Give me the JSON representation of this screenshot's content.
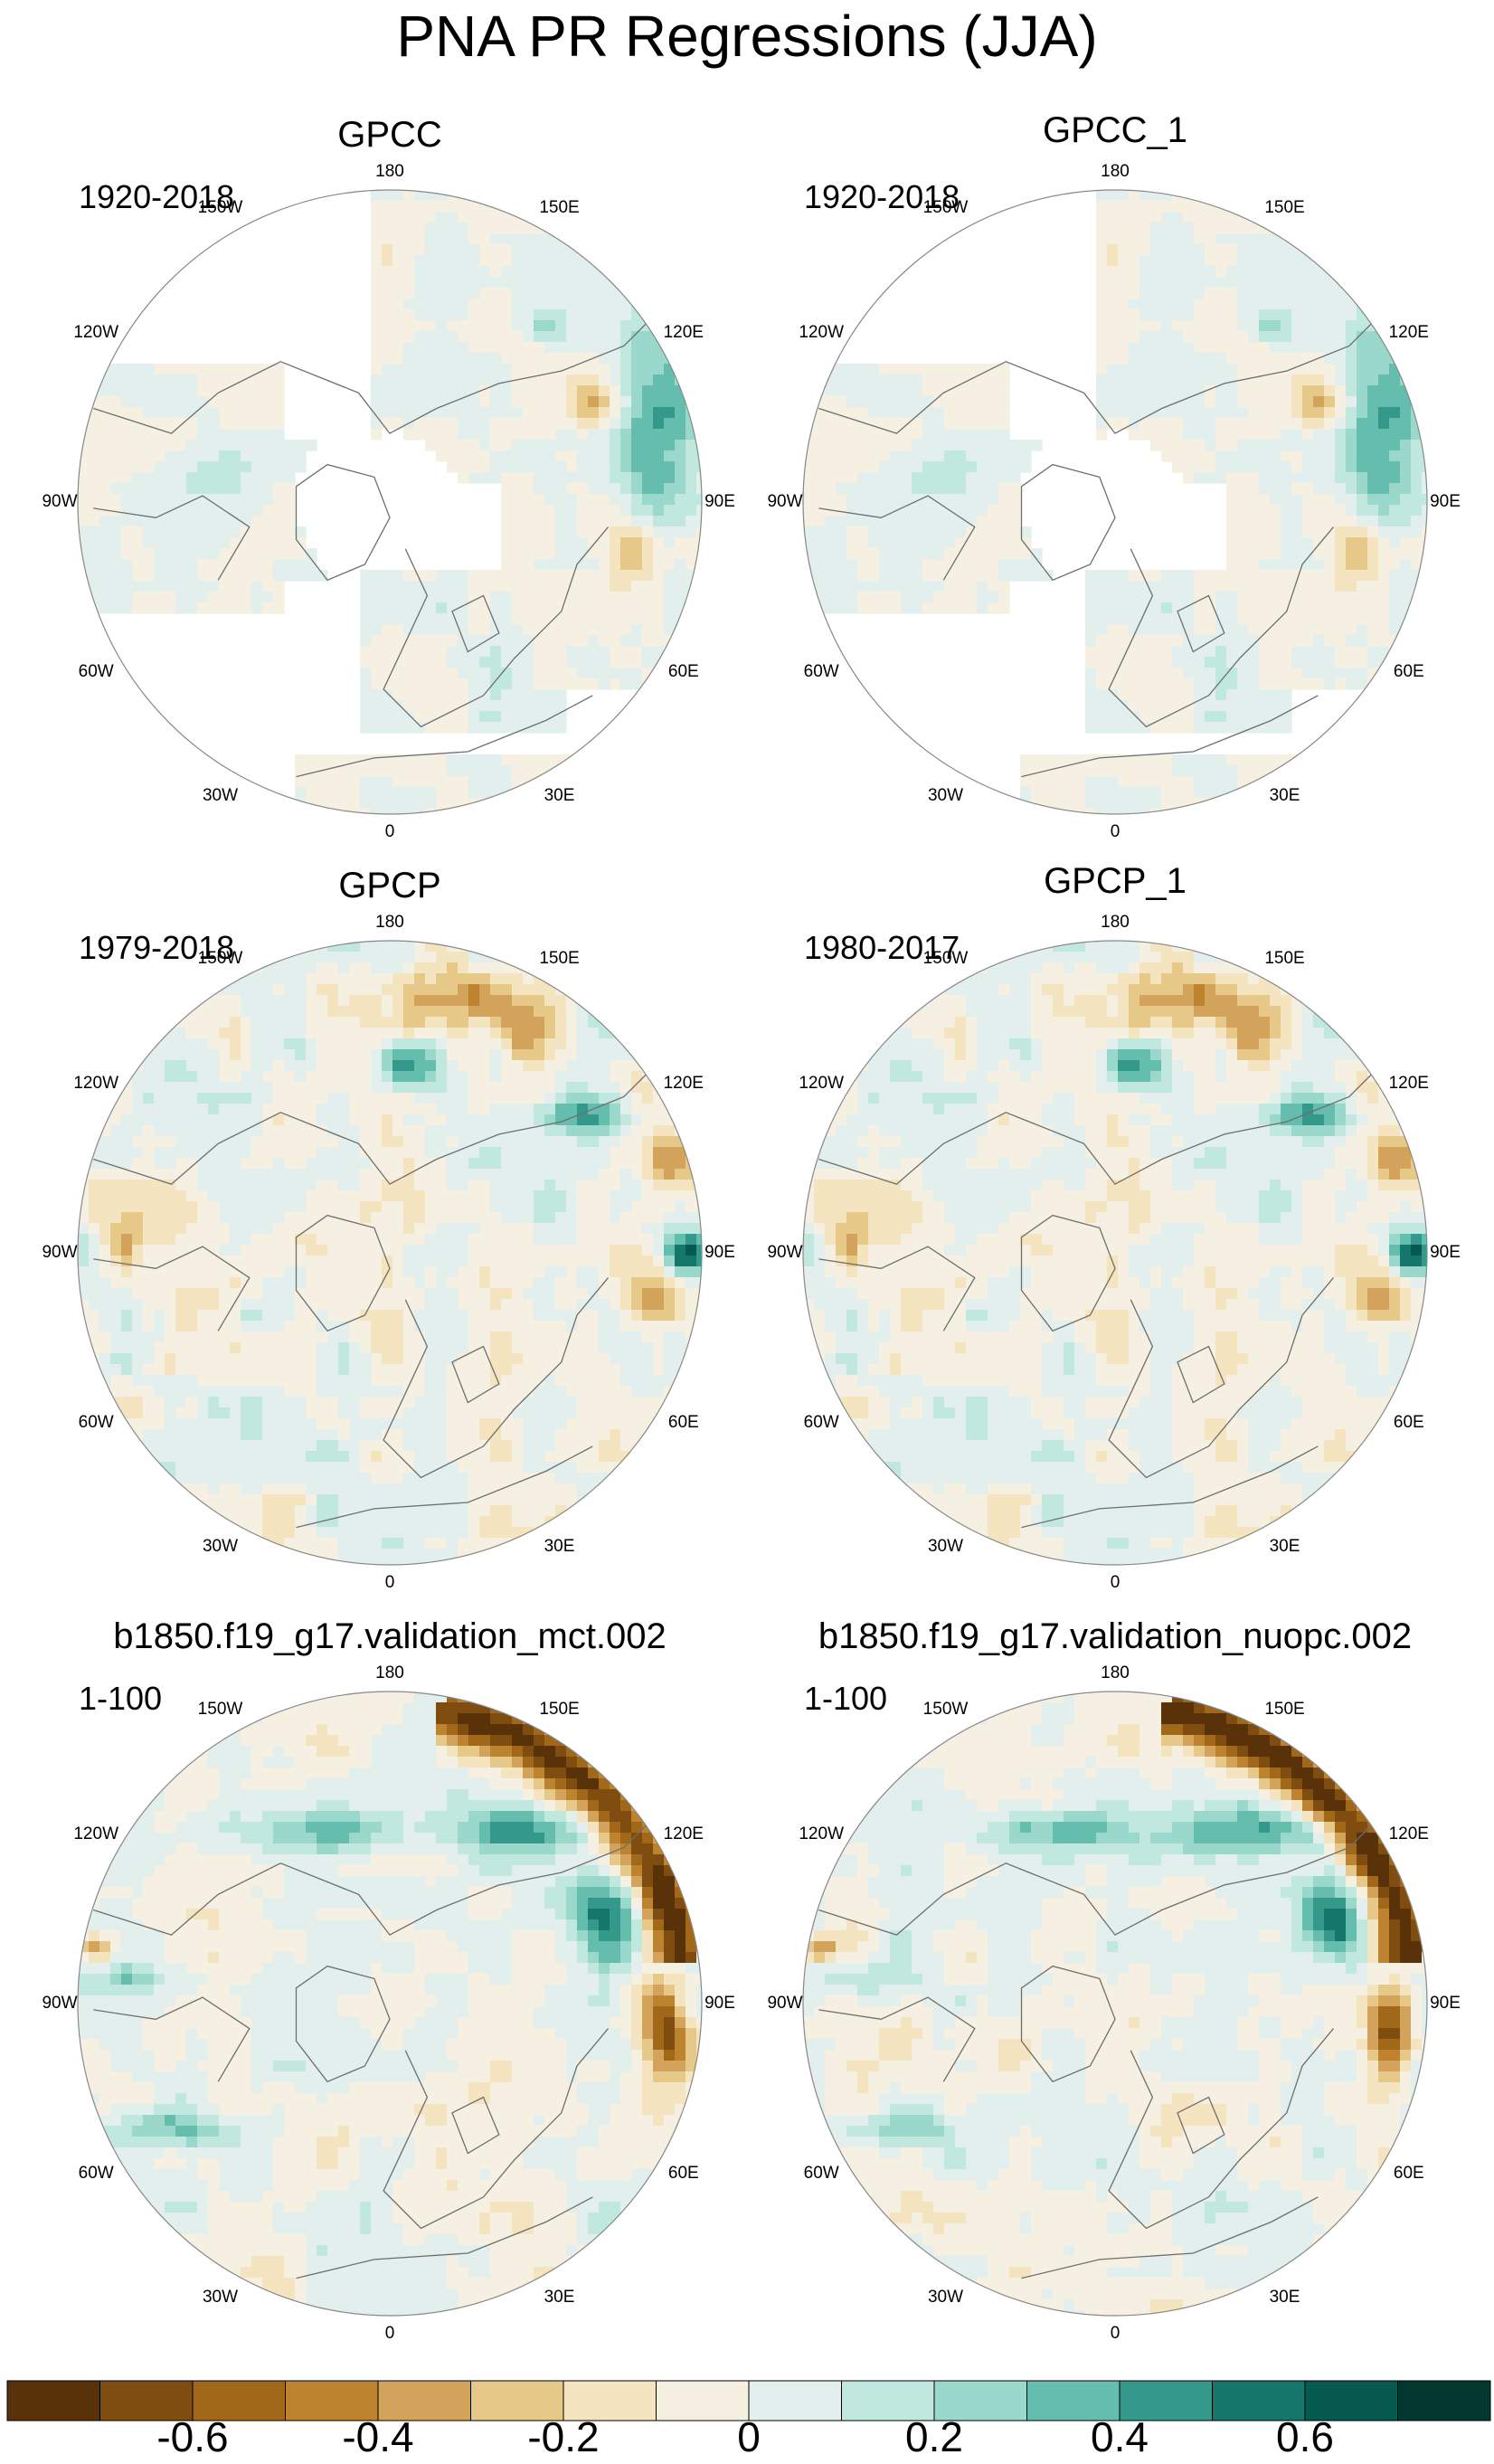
{
  "title": "PNA PR Regressions (JJA)",
  "panels": [
    {
      "title": "GPCC",
      "period": "1920-2018",
      "field": "obs-gpcc"
    },
    {
      "title": "GPCC_1",
      "period": "1920-2018",
      "field": "obs-gpcc"
    },
    {
      "title": "GPCP",
      "period": "1979-2018",
      "field": "obs-gpcp"
    },
    {
      "title": "GPCP_1",
      "period": "1980-2017",
      "field": "obs-gpcp"
    },
    {
      "title": "b1850.f19_g17.validation_mct.002",
      "period": "1-100",
      "field": "model"
    },
    {
      "title": "b1850.f19_g17.validation_nuopc.002",
      "period": "1-100",
      "field": "model"
    }
  ],
  "longitude_labels": [
    "180",
    "150E",
    "120E",
    "90E",
    "60E",
    "30E",
    "0",
    "30W",
    "60W",
    "90W",
    "120W",
    "150W"
  ],
  "colorbar": {
    "levels": [
      -0.7,
      -0.6,
      -0.5,
      -0.4,
      -0.3,
      -0.2,
      -0.1,
      0,
      0.1,
      0.2,
      0.3,
      0.4,
      0.5,
      0.6,
      0.7
    ],
    "colors": [
      "#5a3209",
      "#7f4d0f",
      "#a26819",
      "#bd832f",
      "#d3a35c",
      "#e6c989",
      "#f4e4bf",
      "#f5f0e2",
      "#e2efec",
      "#c1e8df",
      "#99d8ca",
      "#64bdad",
      "#34998b",
      "#15776b",
      "#065a4f",
      "#03382f"
    ],
    "labels": [
      "-0.6",
      "-0.4",
      "-0.2",
      "0",
      "0.2",
      "0.4",
      "0.6"
    ],
    "label_values": [
      -0.6,
      -0.4,
      -0.2,
      0,
      0.2,
      0.4,
      0.6
    ]
  }
}
